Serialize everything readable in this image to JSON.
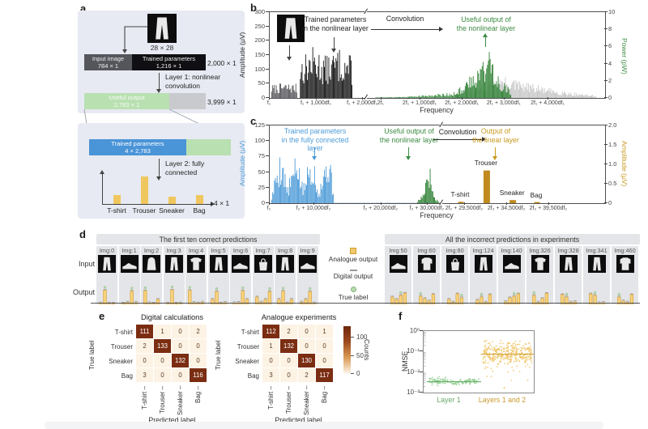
{
  "figure": {
    "panel_labels": {
      "a": "a",
      "b": "b",
      "c": "c",
      "d": "d",
      "e": "e",
      "f": "f"
    }
  },
  "panel_a": {
    "image_caption": "28 × 28",
    "input_segment": {
      "title": "Input image",
      "dim": "784 × 1"
    },
    "params_segment": {
      "title": "Trained parameters",
      "dim": "1,216 × 1"
    },
    "bar1_total": "2,000 × 1",
    "layer1_line1": "Layer 1: nonlinear",
    "layer1_line2": "convolution",
    "useful_segment": {
      "title": "Useful output",
      "dim": "2,783 × 1"
    },
    "bar2_total": "3,999 × 1",
    "params2_segment": {
      "title": "Trained parameters",
      "dim": "4 × 2,783"
    },
    "layer2_line1": "Layer 2: fully",
    "layer2_line2": "connected",
    "output_dim": "4 × 1",
    "classes": [
      "T-shirt",
      "Trouser",
      "Sneaker",
      "Bag"
    ],
    "class_bar_values": [
      0.33,
      1,
      0.27,
      0.33
    ]
  },
  "panel_b": {
    "ann_trained_1": "Trained parameters",
    "ann_trained_2": "in the nonlinear layer",
    "ann_conv": "Convolution",
    "ann_useful_1": "Useful output of",
    "ann_useful_2": "the nonlinear layer"
  },
  "panel_c": {
    "ann_params_1": "Trained parameters",
    "ann_params_2": "in the fully connected layer",
    "ann_useful_1": "Useful output of",
    "ann_useful_2": "the nonlinear layer",
    "ann_conv": "Convolution",
    "ann_output_1": "Output of",
    "ann_output_2": "the linear layer"
  },
  "panel_d": {
    "row_input": "Input",
    "row_output": "Output"
  },
  "chart_data": [
    {
      "id": "b",
      "type": "spectrum",
      "ylabel_left": "Amplitude (μV)",
      "yticks_left": [
        "300",
        "250",
        "200",
        "150",
        "100",
        "50",
        "0"
      ],
      "ylabel_right": "Power (pW)",
      "yticks_right": [
        "10",
        "8",
        "6",
        "4",
        "2",
        "0"
      ],
      "xlabel": "Frequency",
      "xticks": [
        {
          "f": 0.0,
          "label": "f₁"
        },
        {
          "f": 0.14,
          "label": "f₁ + 1,000df₁"
        },
        {
          "f": 0.278,
          "label": "f₁ + 2,000df₁"
        },
        {
          "f": 0.333,
          "label": "2f₁"
        },
        {
          "f": 0.449,
          "label": "2f₁ + 1,000df₁"
        },
        {
          "f": 0.575,
          "label": "2f₁ + 2,000df₁"
        },
        {
          "f": 0.7,
          "label": "2f₁ + 3,000df₁"
        },
        {
          "f": 0.831,
          "label": "2f₁ + 4,000df₁"
        }
      ],
      "break_f": 0.3,
      "ylim_left": [
        0,
        300
      ],
      "ylim_right": [
        0,
        10
      ],
      "segments": [
        {
          "name": "input-image-spectrum",
          "x0": 0.005,
          "x1": 0.082,
          "env": [
            0.16,
            0.18,
            0.17
          ],
          "color": "#55555a",
          "seed": 7
        },
        {
          "name": "trained-params-spectrum",
          "x0": 0.09,
          "x1": 0.245,
          "env": [
            0.48,
            0.62,
            0.5,
            0.6,
            0.5
          ],
          "color": "#141414",
          "seed": 13
        },
        {
          "name": "nonlinear-output-rise",
          "x0": 0.315,
          "x1": 0.55,
          "env": [
            0.006,
            0.012,
            0.025,
            0.045,
            0.075
          ],
          "color": "#3d8c43",
          "seed": 21
        },
        {
          "name": "background-harmonics",
          "x0": 0.55,
          "x1": 0.975,
          "env": [
            0.07,
            0.16,
            0.26,
            0.19,
            0.12,
            0.07,
            0.03
          ],
          "color": "#c7c7c7",
          "seed": 31
        },
        {
          "name": "useful-output-spectrum",
          "x0": 0.55,
          "x1": 0.72,
          "env": [
            0.08,
            0.2,
            0.38,
            0.62,
            0.25,
            0.08
          ],
          "color": "#2e8033",
          "seed": 43
        }
      ]
    },
    {
      "id": "c",
      "type": "spectrum",
      "ylabel_left": "Amplitude (μV)",
      "yticks_left": [
        "125",
        "100",
        "75",
        "50",
        "25",
        "0"
      ],
      "ylabel_right": "Amplitude (μV)",
      "yticks_right": [
        "2.0",
        "1.5",
        "1.0",
        "0.5",
        "0"
      ],
      "xlabel": "Frequency",
      "xticks": [
        {
          "f": 0.0,
          "label": "f₂"
        },
        {
          "f": 0.133,
          "label": "f₂ + 10,000df₂"
        },
        {
          "f": 0.333,
          "label": "f₂ + 20,000df₂"
        },
        {
          "f": 0.471,
          "label": "f₂ + 30,000df₂"
        },
        {
          "f": 0.582,
          "label": "2f₂ + 29,500df₂"
        },
        {
          "f": 0.708,
          "label": "2f₂ + 34,500df₂"
        },
        {
          "f": 0.833,
          "label": "2f₂ + 39,500df₂"
        }
      ],
      "break_f": 0.525,
      "ylim_left": [
        0,
        125
      ],
      "ylim_right": [
        0,
        2.0
      ],
      "segments": [
        {
          "name": "fc-params-spectrum",
          "x0": 0.005,
          "x1": 0.19,
          "env": [
            0.1,
            0.55,
            0.75,
            0.2,
            0.5,
            0.7,
            0.22,
            0.55,
            0.72,
            0.18,
            0.5,
            0.78,
            0.12
          ],
          "color": "#4d9bd8",
          "seed": 5
        },
        {
          "name": "noise-floor",
          "x0": 0.19,
          "x1": 0.44,
          "env": [
            0.012,
            0.01,
            0.012
          ],
          "color": "#b5cede",
          "seed": 9
        },
        {
          "name": "nonlinear-output-spike",
          "x0": 0.44,
          "x1": 0.505,
          "env": [
            0.03,
            0.15,
            0.65,
            0.1,
            0.02
          ],
          "color": "#2e8033",
          "seed": 17
        }
      ],
      "bars": [
        {
          "label": "T-shirt",
          "x": 0.57,
          "h": 0.018,
          "w": 7
        },
        {
          "label": "Trouser",
          "x": 0.647,
          "h": 0.43,
          "w": 8
        },
        {
          "label": "Sneaker",
          "x": 0.725,
          "h": 0.04,
          "w": 8
        },
        {
          "label": "Bag",
          "x": 0.797,
          "h": 0.015,
          "w": 7
        }
      ],
      "bar_color": "#c08a1e"
    },
    {
      "id": "d",
      "type": "bar-grid",
      "groups": [
        {
          "title": "The first ten correct predictions",
          "columns": [
            {
              "label": "Img:0",
              "item": "trouser",
              "true_idx": 1,
              "bars": [
                0.07,
                0.88,
                0.06,
                0.05
              ]
            },
            {
              "label": "Img:1",
              "item": "sneaker",
              "true_idx": 2,
              "bars": [
                0.05,
                0.12,
                0.82,
                0.1
              ]
            },
            {
              "label": "Img:2",
              "item": "top",
              "true_idx": 0,
              "bars": [
                0.85,
                0.08,
                0.05,
                0.3
              ]
            },
            {
              "label": "Img:3",
              "item": "trouser",
              "true_idx": 1,
              "bars": [
                0.06,
                0.9,
                0.05,
                0.07
              ]
            },
            {
              "label": "Img:4",
              "item": "tshirt",
              "true_idx": 0,
              "bars": [
                0.87,
                0.1,
                0.07,
                0.12
              ]
            },
            {
              "label": "Img:5",
              "item": "trouser",
              "true_idx": 1,
              "bars": [
                0.3,
                0.8,
                0.06,
                0.1
              ]
            },
            {
              "label": "Img:6",
              "item": "sneaker",
              "true_idx": 2,
              "bars": [
                0.08,
                0.1,
                0.85,
                0.3
              ]
            },
            {
              "label": "Img:7",
              "item": "bag",
              "true_idx": 3,
              "bars": [
                0.45,
                0.12,
                0.3,
                0.8
              ]
            },
            {
              "label": "Img:8",
              "item": "trouser",
              "true_idx": 1,
              "bars": [
                0.3,
                0.82,
                0.07,
                0.3
              ]
            },
            {
              "label": "Img:9",
              "item": "sneaker",
              "true_idx": 2,
              "bars": [
                0.12,
                0.3,
                0.8,
                0.07
              ]
            }
          ]
        },
        {
          "title": "All the incorrect predictions in experiments",
          "columns": [
            {
              "label": "Img:50",
              "item": "sneaker",
              "true_idx": 2,
              "bars": [
                0.45,
                0.3,
                0.55,
                0.7
              ]
            },
            {
              "label": "Img:60",
              "item": "shirt",
              "true_idx": 0,
              "bars": [
                0.5,
                0.35,
                0.2,
                0.62
              ]
            },
            {
              "label": "Img:80",
              "item": "bag",
              "true_idx": 3,
              "bars": [
                0.3,
                0.12,
                0.65,
                0.4
              ]
            },
            {
              "label": "Img:124",
              "item": "trouser",
              "true_idx": 1,
              "bars": [
                0.25,
                0.45,
                0.12,
                0.6
              ]
            },
            {
              "label": "Img:140",
              "item": "sneaker",
              "true_idx": 2,
              "bars": [
                0.15,
                0.4,
                0.5,
                0.65
              ]
            },
            {
              "label": "Img:326",
              "item": "tshirt",
              "true_idx": 0,
              "bars": [
                0.55,
                0.12,
                0.35,
                0.68
              ]
            },
            {
              "label": "Img:328",
              "item": "trouser",
              "true_idx": 1,
              "bars": [
                0.6,
                0.45,
                0.12,
                0.15
              ]
            },
            {
              "label": "Img:341",
              "item": "trouser",
              "true_idx": 1,
              "bars": [
                0.65,
                0.55,
                0.08,
                0.1
              ]
            },
            {
              "label": "Img:460",
              "item": "shirt",
              "true_idx": 0,
              "bars": [
                0.45,
                0.2,
                0.12,
                0.6
              ]
            }
          ]
        }
      ],
      "legend": [
        {
          "label": "Analogue output",
          "marker": "square",
          "color": "#f2c96b"
        },
        {
          "label": "Digital output",
          "marker": "dash",
          "color": "#9a9a9a"
        },
        {
          "label": "True label",
          "marker": "dot",
          "color": "#b7dcae"
        }
      ],
      "row_labels": [
        "Input",
        "Output"
      ]
    },
    {
      "id": "e",
      "type": "heatmap",
      "matrices": [
        {
          "title": "Digital calculations",
          "rows": [
            "T-shirt",
            "Trouser",
            "Sneaker",
            "Bag"
          ],
          "cols": [
            "T-shirt",
            "Trouser",
            "Sneaker",
            "Bag"
          ],
          "values": [
            [
              111,
              1,
              0,
              2
            ],
            [
              2,
              133,
              0,
              0
            ],
            [
              0,
              0,
              132,
              0
            ],
            [
              3,
              0,
              0,
              116
            ]
          ],
          "xlabel": "Predicted label",
          "ylabel": "True label"
        },
        {
          "title": "Analogue experiments",
          "rows": [
            "T-shirt",
            "Trouser",
            "Sneaker",
            "Bag"
          ],
          "cols": [
            "T-shirt",
            "Trouser",
            "Sneaker",
            "Bag"
          ],
          "values": [
            [
              112,
              2,
              0,
              1
            ],
            [
              1,
              132,
              0,
              0
            ],
            [
              0,
              0,
              130,
              0
            ],
            [
              3,
              0,
              2,
              117
            ]
          ],
          "xlabel": "Predicted label",
          "ylabel": "True label"
        }
      ],
      "colorbar": {
        "label": "Counts",
        "ticks": [
          "100",
          "50",
          "0"
        ],
        "tick_values": [
          100,
          50,
          0
        ],
        "max": 130,
        "color_high": "#6e2409",
        "color_low": "#fdf3e4"
      }
    },
    {
      "id": "f",
      "type": "scatter",
      "ylabel": "NMSE",
      "yticks": [
        "10⁰",
        "10⁻¹",
        "10⁻²",
        "10⁻³"
      ],
      "ylim_log": [
        0,
        -3
      ],
      "groups": [
        {
          "label": "Layer 1",
          "color": "#8fcd8f",
          "line_color": "#5aa85a",
          "x0": 0.05,
          "x1": 0.5,
          "n": 130,
          "logy_mean": -2.45,
          "logy_spread": 0.09,
          "line_logy": -2.47,
          "seed": 3
        },
        {
          "label": "Layers 1 and 2",
          "color": "#eec363",
          "line_color": "#cf9b2f",
          "x0": 0.54,
          "x1": 0.98,
          "n": 330,
          "logy_mean": -1.08,
          "logy_spread": 0.3,
          "line_logy": -1.13,
          "seed": 11
        }
      ]
    }
  ]
}
